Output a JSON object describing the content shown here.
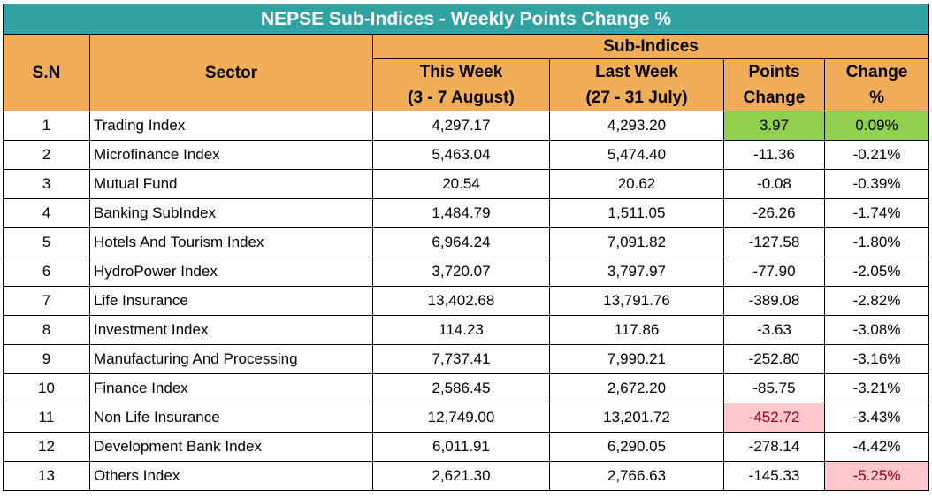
{
  "title": "NEPSE Sub-Indices - Weekly Points Change %",
  "headers": {
    "sn": "S.N",
    "sector": "Sector",
    "group": "Sub-Indices",
    "this_week": {
      "line1": "This Week",
      "line2": "(3 - 7 August)"
    },
    "last_week": {
      "line1": "Last Week",
      "line2": "(27 - 31 July)"
    },
    "points_change": {
      "line1": "Points",
      "line2": "Change"
    },
    "change_pct": {
      "line1": "Change",
      "line2": "%"
    }
  },
  "colors": {
    "title_bg": "#31a3a3",
    "header_bg": "#f2ad59",
    "positive_highlight": "#92d050",
    "negative_highlight": "#ffc7ce",
    "negative_highlight_text": "#9c0006"
  },
  "rows": [
    {
      "sn": "1",
      "sector": "Trading Index",
      "this_week": "4,297.17",
      "last_week": "4,293.20",
      "points_change": "3.97",
      "change_pct": "0.09%",
      "points_highlight": "green",
      "pct_highlight": "green"
    },
    {
      "sn": "2",
      "sector": "Microfinance Index",
      "this_week": "5,463.04",
      "last_week": "5,474.40",
      "points_change": "-11.36",
      "change_pct": "-0.21%",
      "points_highlight": "",
      "pct_highlight": ""
    },
    {
      "sn": "3",
      "sector": "Mutual Fund",
      "this_week": "20.54",
      "last_week": "20.62",
      "points_change": "-0.08",
      "change_pct": "-0.39%",
      "points_highlight": "",
      "pct_highlight": ""
    },
    {
      "sn": "4",
      "sector": "Banking SubIndex",
      "this_week": "1,484.79",
      "last_week": "1,511.05",
      "points_change": "-26.26",
      "change_pct": "-1.74%",
      "points_highlight": "",
      "pct_highlight": ""
    },
    {
      "sn": "5",
      "sector": "Hotels And Tourism Index",
      "this_week": "6,964.24",
      "last_week": "7,091.82",
      "points_change": "-127.58",
      "change_pct": "-1.80%",
      "points_highlight": "",
      "pct_highlight": ""
    },
    {
      "sn": "6",
      "sector": "HydroPower Index",
      "this_week": "3,720.07",
      "last_week": "3,797.97",
      "points_change": "-77.90",
      "change_pct": "-2.05%",
      "points_highlight": "",
      "pct_highlight": ""
    },
    {
      "sn": "7",
      "sector": "Life Insurance",
      "this_week": "13,402.68",
      "last_week": "13,791.76",
      "points_change": "-389.08",
      "change_pct": "-2.82%",
      "points_highlight": "",
      "pct_highlight": ""
    },
    {
      "sn": "8",
      "sector": "Investment Index",
      "this_week": "114.23",
      "last_week": "117.86",
      "points_change": "-3.63",
      "change_pct": "-3.08%",
      "points_highlight": "",
      "pct_highlight": ""
    },
    {
      "sn": "9",
      "sector": "Manufacturing And Processing",
      "this_week": "7,737.41",
      "last_week": "7,990.21",
      "points_change": "-252.80",
      "change_pct": "-3.16%",
      "points_highlight": "",
      "pct_highlight": ""
    },
    {
      "sn": "10",
      "sector": "Finance Index",
      "this_week": "2,586.45",
      "last_week": "2,672.20",
      "points_change": "-85.75",
      "change_pct": "-3.21%",
      "points_highlight": "",
      "pct_highlight": ""
    },
    {
      "sn": "11",
      "sector": "Non Life Insurance",
      "this_week": "12,749.00",
      "last_week": "13,201.72",
      "points_change": "-452.72",
      "change_pct": "-3.43%",
      "points_highlight": "pink",
      "pct_highlight": ""
    },
    {
      "sn": "12",
      "sector": "Development Bank Index",
      "this_week": "6,011.91",
      "last_week": "6,290.05",
      "points_change": "-278.14",
      "change_pct": "-4.42%",
      "points_highlight": "",
      "pct_highlight": ""
    },
    {
      "sn": "13",
      "sector": "Others Index",
      "this_week": "2,621.30",
      "last_week": "2,766.63",
      "points_change": "-145.33",
      "change_pct": "-5.25%",
      "points_highlight": "",
      "pct_highlight": "pink"
    }
  ]
}
